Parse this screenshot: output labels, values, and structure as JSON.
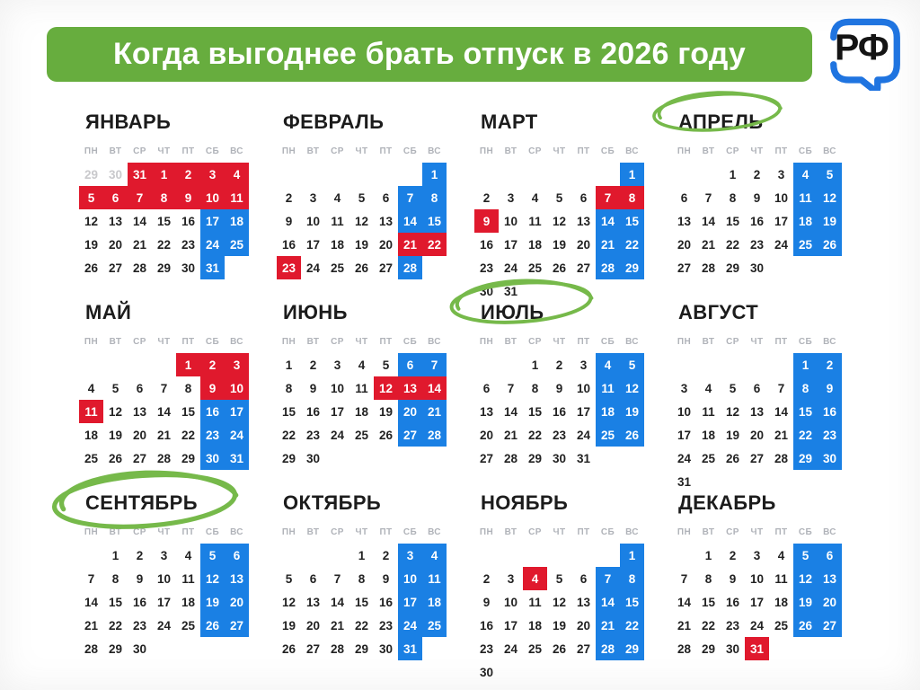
{
  "header": {
    "title": "Когда выгоднее брать отпуск в 2026 году",
    "logo_text": "РФ"
  },
  "colors": {
    "banner_green": "#67ad3e",
    "holiday_red": "#e0192d",
    "weekend_blue": "#1a80e4",
    "circle_green": "#76b94a",
    "logo_blue": "#1f74e0"
  },
  "weekdays": [
    "ПН",
    "ВТ",
    "СР",
    "ЧТ",
    "ПТ",
    "СБ",
    "ВС"
  ],
  "circled_months": [
    "АПРЕЛЬ",
    "ИЮЛЬ",
    "СЕНТЯБРЬ"
  ],
  "months": [
    {
      "name": "ЯНВАРЬ",
      "circled": false,
      "weeks": [
        [
          "29:g",
          "30:g",
          "31:r",
          "1:r",
          "2:r",
          "3:r",
          "4:r"
        ],
        [
          "5:r",
          "6:r",
          "7:r",
          "8:r",
          "9:r",
          "10:r",
          "11:r"
        ],
        [
          "12:n",
          "13:n",
          "14:n",
          "15:n",
          "16:n",
          "17:b",
          "18:b"
        ],
        [
          "19:n",
          "20:n",
          "21:n",
          "22:n",
          "23:n",
          "24:b",
          "25:b"
        ],
        [
          "26:n",
          "27:n",
          "28:n",
          "29:n",
          "30:n",
          "31:b",
          ""
        ]
      ]
    },
    {
      "name": "ФЕВРАЛЬ",
      "circled": false,
      "weeks": [
        [
          "",
          "",
          "",
          "",
          "",
          "",
          "1:b"
        ],
        [
          "2:n",
          "3:n",
          "4:n",
          "5:n",
          "6:n",
          "7:b",
          "8:b"
        ],
        [
          "9:n",
          "10:n",
          "11:n",
          "12:n",
          "13:n",
          "14:b",
          "15:b"
        ],
        [
          "16:n",
          "17:n",
          "18:n",
          "19:n",
          "20:n",
          "21:r",
          "22:r"
        ],
        [
          "23:r",
          "24:n",
          "25:n",
          "26:n",
          "27:n",
          "28:b",
          ""
        ]
      ]
    },
    {
      "name": "МАРТ",
      "circled": false,
      "weeks": [
        [
          "",
          "",
          "",
          "",
          "",
          "",
          "1:b"
        ],
        [
          "2:n",
          "3:n",
          "4:n",
          "5:n",
          "6:n",
          "7:r",
          "8:r"
        ],
        [
          "9:r",
          "10:n",
          "11:n",
          "12:n",
          "13:n",
          "14:b",
          "15:b"
        ],
        [
          "16:n",
          "17:n",
          "18:n",
          "19:n",
          "20:n",
          "21:b",
          "22:b"
        ],
        [
          "23:n",
          "24:n",
          "25:n",
          "26:n",
          "27:n",
          "28:b",
          "29:b"
        ],
        [
          "30:n",
          "31:n",
          "",
          "",
          "",
          "",
          ""
        ]
      ]
    },
    {
      "name": "АПРЕЛЬ",
      "circled": true,
      "weeks": [
        [
          "",
          "",
          "1:n",
          "2:n",
          "3:n",
          "4:b",
          "5:b"
        ],
        [
          "6:n",
          "7:n",
          "8:n",
          "9:n",
          "10:n",
          "11:b",
          "12:b"
        ],
        [
          "13:n",
          "14:n",
          "15:n",
          "16:n",
          "17:n",
          "18:b",
          "19:b"
        ],
        [
          "20:n",
          "21:n",
          "22:n",
          "23:n",
          "24:n",
          "25:b",
          "26:b"
        ],
        [
          "27:n",
          "28:n",
          "29:n",
          "30:n",
          "",
          "",
          ""
        ]
      ]
    },
    {
      "name": "МАЙ",
      "circled": false,
      "weeks": [
        [
          "",
          "",
          "",
          "",
          "1:r",
          "2:r",
          "3:r"
        ],
        [
          "4:n",
          "5:n",
          "6:n",
          "7:n",
          "8:n",
          "9:r",
          "10:r"
        ],
        [
          "11:r",
          "12:n",
          "13:n",
          "14:n",
          "15:n",
          "16:b",
          "17:b"
        ],
        [
          "18:n",
          "19:n",
          "20:n",
          "21:n",
          "22:n",
          "23:b",
          "24:b"
        ],
        [
          "25:n",
          "26:n",
          "27:n",
          "28:n",
          "29:n",
          "30:b",
          "31:b"
        ]
      ]
    },
    {
      "name": "ИЮНЬ",
      "circled": false,
      "weeks": [
        [
          "1:n",
          "2:n",
          "3:n",
          "4:n",
          "5:n",
          "6:b",
          "7:b"
        ],
        [
          "8:n",
          "9:n",
          "10:n",
          "11:n",
          "12:r",
          "13:r",
          "14:r"
        ],
        [
          "15:n",
          "16:n",
          "17:n",
          "18:n",
          "19:n",
          "20:b",
          "21:b"
        ],
        [
          "22:n",
          "23:n",
          "24:n",
          "25:n",
          "26:n",
          "27:b",
          "28:b"
        ],
        [
          "29:n",
          "30:n",
          "",
          "",
          "",
          "",
          ""
        ]
      ]
    },
    {
      "name": "ИЮЛЬ",
      "circled": true,
      "weeks": [
        [
          "",
          "",
          "1:n",
          "2:n",
          "3:n",
          "4:b",
          "5:b"
        ],
        [
          "6:n",
          "7:n",
          "8:n",
          "9:n",
          "10:n",
          "11:b",
          "12:b"
        ],
        [
          "13:n",
          "14:n",
          "15:n",
          "16:n",
          "17:n",
          "18:b",
          "19:b"
        ],
        [
          "20:n",
          "21:n",
          "22:n",
          "23:n",
          "24:n",
          "25:b",
          "26:b"
        ],
        [
          "27:n",
          "28:n",
          "29:n",
          "30:n",
          "31:n",
          "",
          ""
        ]
      ]
    },
    {
      "name": "АВГУСТ",
      "circled": false,
      "weeks": [
        [
          "",
          "",
          "",
          "",
          "",
          "1:b",
          "2:b"
        ],
        [
          "3:n",
          "4:n",
          "5:n",
          "6:n",
          "7:n",
          "8:b",
          "9:b"
        ],
        [
          "10:n",
          "11:n",
          "12:n",
          "13:n",
          "14:n",
          "15:b",
          "16:b"
        ],
        [
          "17:n",
          "18:n",
          "19:n",
          "20:n",
          "21:n",
          "22:b",
          "23:b"
        ],
        [
          "24:n",
          "25:n",
          "26:n",
          "27:n",
          "28:n",
          "29:b",
          "30:b"
        ],
        [
          "31:n",
          "",
          "",
          "",
          "",
          "",
          ""
        ]
      ]
    },
    {
      "name": "СЕНТЯБРЬ",
      "circled": true,
      "weeks": [
        [
          "",
          "1:n",
          "2:n",
          "3:n",
          "4:n",
          "5:b",
          "6:b"
        ],
        [
          "7:n",
          "8:n",
          "9:n",
          "10:n",
          "11:n",
          "12:b",
          "13:b"
        ],
        [
          "14:n",
          "15:n",
          "16:n",
          "17:n",
          "18:n",
          "19:b",
          "20:b"
        ],
        [
          "21:n",
          "22:n",
          "23:n",
          "24:n",
          "25:n",
          "26:b",
          "27:b"
        ],
        [
          "28:n",
          "29:n",
          "30:n",
          "",
          "",
          "",
          ""
        ]
      ]
    },
    {
      "name": "ОКТЯБРЬ",
      "circled": false,
      "weeks": [
        [
          "",
          "",
          "",
          "1:n",
          "2:n",
          "3:b",
          "4:b"
        ],
        [
          "5:n",
          "6:n",
          "7:n",
          "8:n",
          "9:n",
          "10:b",
          "11:b"
        ],
        [
          "12:n",
          "13:n",
          "14:n",
          "15:n",
          "16:n",
          "17:b",
          "18:b"
        ],
        [
          "19:n",
          "20:n",
          "21:n",
          "22:n",
          "23:n",
          "24:b",
          "25:b"
        ],
        [
          "26:n",
          "27:n",
          "28:n",
          "29:n",
          "30:n",
          "31:b",
          ""
        ]
      ]
    },
    {
      "name": "НОЯБРЬ",
      "circled": false,
      "weeks": [
        [
          "",
          "",
          "",
          "",
          "",
          "",
          "1:b"
        ],
        [
          "2:n",
          "3:n",
          "4:r",
          "5:n",
          "6:n",
          "7:b",
          "8:b"
        ],
        [
          "9:n",
          "10:n",
          "11:n",
          "12:n",
          "13:n",
          "14:b",
          "15:b"
        ],
        [
          "16:n",
          "17:n",
          "18:n",
          "19:n",
          "20:n",
          "21:b",
          "22:b"
        ],
        [
          "23:n",
          "24:n",
          "25:n",
          "26:n",
          "27:n",
          "28:b",
          "29:b"
        ],
        [
          "30:n",
          "",
          "",
          "",
          "",
          "",
          ""
        ]
      ]
    },
    {
      "name": "ДЕКАБРЬ",
      "circled": false,
      "weeks": [
        [
          "",
          "1:n",
          "2:n",
          "3:n",
          "4:n",
          "5:b",
          "6:b"
        ],
        [
          "7:n",
          "8:n",
          "9:n",
          "10:n",
          "11:n",
          "12:b",
          "13:b"
        ],
        [
          "14:n",
          "15:n",
          "16:n",
          "17:n",
          "18:n",
          "19:b",
          "20:b"
        ],
        [
          "21:n",
          "22:n",
          "23:n",
          "24:n",
          "25:n",
          "26:b",
          "27:b"
        ],
        [
          "28:n",
          "29:n",
          "30:n",
          "31:r",
          "",
          "",
          ""
        ]
      ]
    }
  ]
}
